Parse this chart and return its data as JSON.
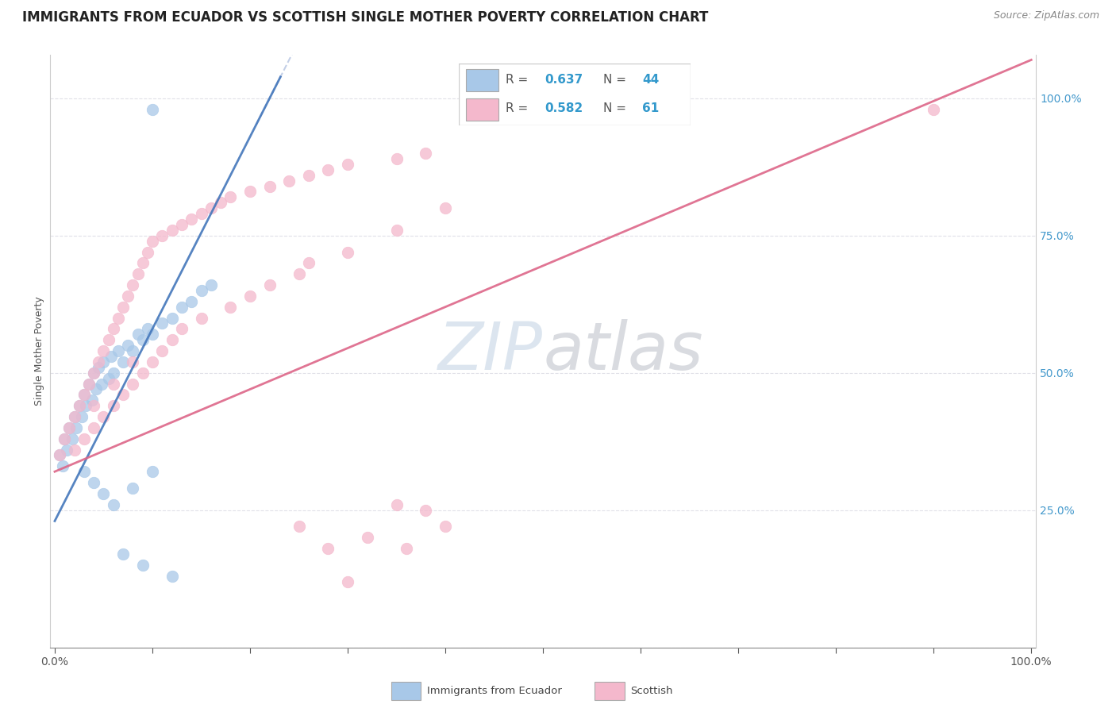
{
  "title": "IMMIGRANTS FROM ECUADOR VS SCOTTISH SINGLE MOTHER POVERTY CORRELATION CHART",
  "source": "Source: ZipAtlas.com",
  "ylabel": "Single Mother Poverty",
  "blue_color": "#a8c8e8",
  "pink_color": "#f4b8cc",
  "blue_line_color": "#4477bb",
  "pink_line_color": "#dd6688",
  "blue_dash_color": "#aabbdd",
  "background_color": "#ffffff",
  "grid_color": "#e0e0e8",
  "title_fontsize": 12,
  "watermark_zip_color": "#c8d8e8",
  "watermark_atlas_color": "#c8c8d8",
  "R_blue": 0.637,
  "N_blue": 44,
  "R_pink": 0.582,
  "N_pink": 61,
  "legend_value_color": "#3399cc",
  "legend_label_color": "#555555"
}
